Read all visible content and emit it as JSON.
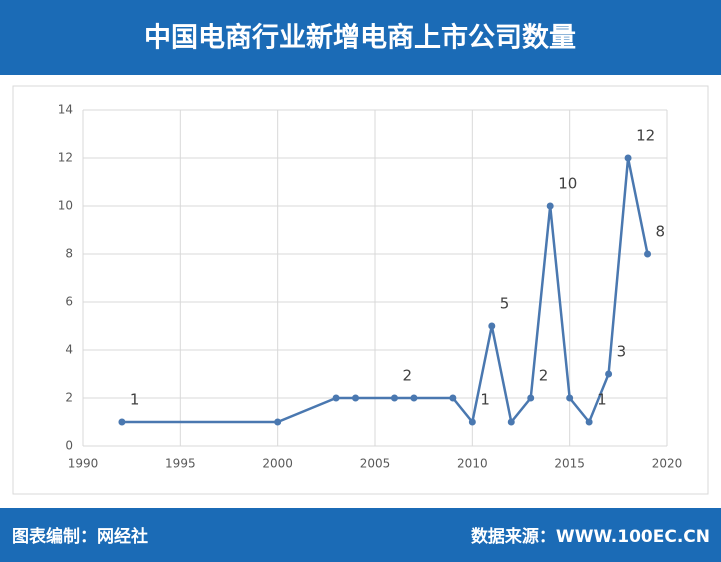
{
  "header": {
    "title": "中国电商行业新增电商上市公司数量"
  },
  "chart_data": {
    "type": "line",
    "x": [
      1992,
      2000,
      2003,
      2004,
      2006,
      2007,
      2009,
      2010,
      2011,
      2012,
      2013,
      2014,
      2015,
      2016,
      2017,
      2018,
      2019
    ],
    "values": [
      1,
      1,
      2,
      2,
      2,
      2,
      2,
      1,
      5,
      1,
      2,
      10,
      2,
      1,
      3,
      12,
      8
    ],
    "value_labels": [
      "1",
      null,
      null,
      null,
      "2",
      null,
      null,
      "1",
      "5",
      null,
      "2",
      "10",
      null,
      "1",
      "3",
      "12",
      "8"
    ],
    "color": "#4a78b0",
    "xlim": [
      1990,
      2020
    ],
    "xticks": [
      1990,
      1995,
      2000,
      2005,
      2010,
      2015,
      2020
    ],
    "ylim": [
      0,
      14
    ],
    "yticks": [
      0,
      2,
      4,
      6,
      8,
      10,
      12,
      14
    ],
    "grid": true
  },
  "footer": {
    "left": "图表编制：网经社",
    "right": "数据来源：WWW.100EC.CN"
  }
}
